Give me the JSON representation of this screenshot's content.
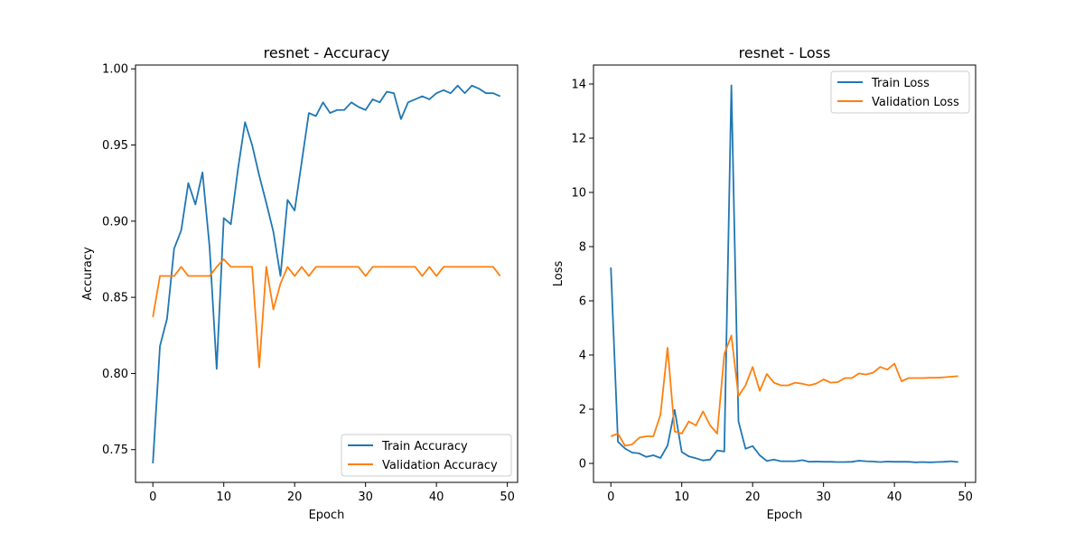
{
  "colors": {
    "train": "#1f77b4",
    "validation": "#ff7f0e"
  },
  "chart_data": [
    {
      "type": "line",
      "title": "resnet - Accuracy",
      "xlabel": "Epoch",
      "ylabel": "Accuracy",
      "xlim": [
        -2.45,
        51.45
      ],
      "ylim": [
        0.7285,
        1.0025
      ],
      "xticks": [
        0,
        10,
        20,
        30,
        40,
        50
      ],
      "yticks": [
        0.75,
        0.8,
        0.85,
        0.9,
        0.95,
        1.0
      ],
      "ytick_labels": [
        "0.75",
        "0.80",
        "0.85",
        "0.90",
        "0.95",
        "1.00"
      ],
      "legend_position": "lower-right",
      "series": [
        {
          "name": "Train Accuracy",
          "color_key": "train",
          "values": [
            0.741,
            0.818,
            0.836,
            0.882,
            0.894,
            0.925,
            0.911,
            0.932,
            0.883,
            0.803,
            0.902,
            0.898,
            0.934,
            0.965,
            0.95,
            0.93,
            0.912,
            0.893,
            0.864,
            0.914,
            0.907,
            0.939,
            0.971,
            0.969,
            0.978,
            0.971,
            0.973,
            0.973,
            0.978,
            0.975,
            0.973,
            0.98,
            0.978,
            0.985,
            0.984,
            0.967,
            0.978,
            0.98,
            0.982,
            0.98,
            0.984,
            0.986,
            0.984,
            0.989,
            0.984,
            0.989,
            0.987,
            0.984,
            0.984,
            0.982
          ]
        },
        {
          "name": "Validation Accuracy",
          "color_key": "validation",
          "values": [
            0.837,
            0.864,
            0.864,
            0.864,
            0.87,
            0.864,
            0.864,
            0.864,
            0.864,
            0.87,
            0.875,
            0.87,
            0.87,
            0.87,
            0.87,
            0.804,
            0.87,
            0.842,
            0.859,
            0.87,
            0.864,
            0.87,
            0.864,
            0.87,
            0.87,
            0.87,
            0.87,
            0.87,
            0.87,
            0.87,
            0.864,
            0.87,
            0.87,
            0.87,
            0.87,
            0.87,
            0.87,
            0.87,
            0.864,
            0.87,
            0.864,
            0.87,
            0.87,
            0.87,
            0.87,
            0.87,
            0.87,
            0.87,
            0.87,
            0.864
          ]
        }
      ]
    },
    {
      "type": "line",
      "title": "resnet - Loss",
      "xlabel": "Epoch",
      "ylabel": "Loss",
      "xlim": [
        -2.45,
        51.45
      ],
      "ylim": [
        -0.7,
        14.7
      ],
      "xticks": [
        0,
        10,
        20,
        30,
        40,
        50
      ],
      "yticks": [
        0,
        2,
        4,
        6,
        8,
        10,
        12,
        14
      ],
      "ytick_labels": [
        "0",
        "2",
        "4",
        "6",
        "8",
        "10",
        "12",
        "14"
      ],
      "legend_position": "upper-right",
      "series": [
        {
          "name": "Train Loss",
          "color_key": "train",
          "values": [
            7.23,
            0.8,
            0.55,
            0.4,
            0.37,
            0.24,
            0.3,
            0.2,
            0.66,
            1.98,
            0.42,
            0.26,
            0.19,
            0.11,
            0.14,
            0.48,
            0.44,
            13.95,
            1.55,
            0.54,
            0.64,
            0.3,
            0.09,
            0.14,
            0.08,
            0.08,
            0.08,
            0.12,
            0.06,
            0.07,
            0.06,
            0.06,
            0.05,
            0.05,
            0.06,
            0.1,
            0.08,
            0.07,
            0.05,
            0.07,
            0.06,
            0.06,
            0.06,
            0.04,
            0.05,
            0.04,
            0.05,
            0.06,
            0.08,
            0.05
          ]
        },
        {
          "name": "Validation Loss",
          "color_key": "validation",
          "values": [
            1.0,
            1.1,
            0.65,
            0.7,
            0.95,
            1.0,
            1.0,
            1.8,
            4.27,
            1.18,
            1.1,
            1.55,
            1.4,
            1.92,
            1.4,
            1.1,
            4.03,
            4.72,
            2.48,
            2.88,
            3.56,
            2.68,
            3.3,
            2.98,
            2.88,
            2.88,
            2.98,
            2.94,
            2.88,
            2.95,
            3.1,
            2.98,
            3.0,
            3.15,
            3.15,
            3.32,
            3.28,
            3.35,
            3.56,
            3.46,
            3.68,
            3.03,
            3.15,
            3.15,
            3.15,
            3.16,
            3.16,
            3.18,
            3.2,
            3.22
          ]
        }
      ]
    }
  ]
}
